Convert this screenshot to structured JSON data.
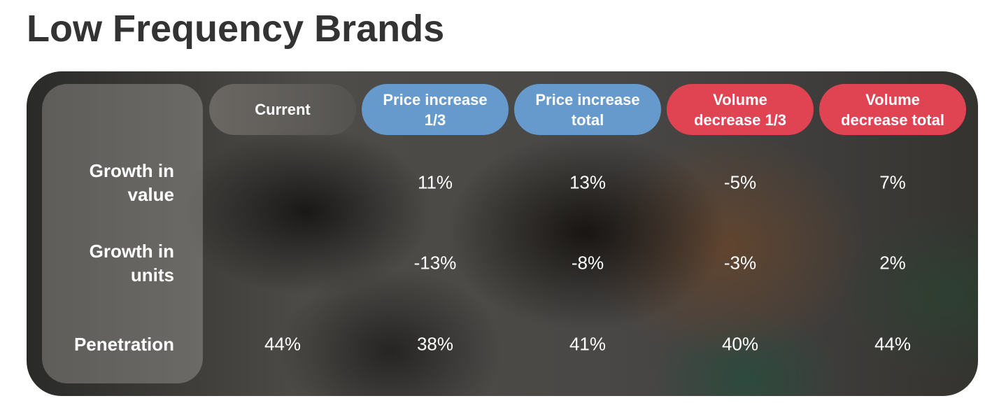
{
  "header": {
    "title": "Low Frequency Brands"
  },
  "table": {
    "columns": [
      {
        "label": "Current",
        "style": "neutral"
      },
      {
        "label": "Price increase 1/3",
        "style": "blue"
      },
      {
        "label": "Price increase total",
        "style": "blue"
      },
      {
        "label": "Volume decrease 1/3",
        "style": "red"
      },
      {
        "label": "Volume decrease total",
        "style": "red"
      }
    ],
    "rows": [
      {
        "label": "Growth in value",
        "cells": [
          null,
          "11%",
          "13%",
          "-5%",
          "7%"
        ]
      },
      {
        "label": "Growth in units",
        "cells": [
          null,
          "-13%",
          "-8%",
          "-3%",
          "2%"
        ]
      },
      {
        "label": "Penetration",
        "cells": [
          "44%",
          "38%",
          "41%",
          "40%",
          "44%"
        ]
      }
    ]
  }
}
